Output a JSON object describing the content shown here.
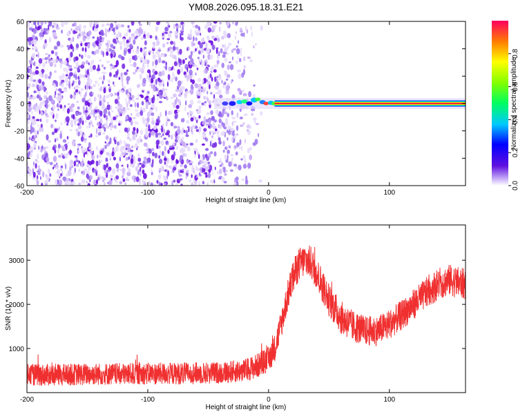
{
  "title": "YM08.2026.095.18.31.E21",
  "chart_data": [
    {
      "type": "heatmap",
      "xlabel": "Height of straight line (km)",
      "ylabel": "Frequency (Hz)",
      "xlim": [
        -200,
        163
      ],
      "ylim": [
        -60,
        60
      ],
      "xticks": [
        -200,
        -100,
        0,
        100
      ],
      "xtick_labels": [
        "-200",
        "-100",
        "0",
        "100"
      ],
      "yticks": [
        -60,
        -40,
        -20,
        0,
        20,
        40,
        60
      ],
      "ytick_labels": [
        "-60",
        "-40",
        "-20",
        "0",
        "20",
        "40",
        "60"
      ],
      "colorbar": {
        "label": "Normalized spectral amplitude",
        "range": [
          0,
          1
        ],
        "ticks": [
          0,
          0.2,
          0.4,
          0.6,
          0.8
        ],
        "tick_labels": [
          "0.0",
          "0.2",
          "0.4",
          "0.6",
          "0.8"
        ]
      },
      "features": {
        "noise_region_x": [
          -200,
          -10
        ],
        "peak_frequency_hz": 0,
        "signal_x_range": [
          -45,
          163
        ],
        "signal_peak_x_range": [
          5,
          163
        ]
      }
    },
    {
      "type": "line",
      "xlabel": "Height of straight line (km)",
      "ylabel": "SNR (10 * v/v)",
      "xlim": [
        -200,
        163
      ],
      "ylim": [
        0,
        3800
      ],
      "xticks": [
        -200,
        -100,
        0,
        100
      ],
      "xtick_labels": [
        "-200",
        "-100",
        "0",
        "100"
      ],
      "yticks": [
        1000,
        2000,
        3000
      ],
      "ytick_labels": [
        "1000",
        "2000",
        "3000"
      ],
      "series": [
        {
          "name": "SNR",
          "color": "#f03030",
          "x": [
            -200,
            -180,
            -160,
            -140,
            -120,
            -100,
            -80,
            -60,
            -40,
            -20,
            -10,
            0,
            5,
            10,
            15,
            20,
            25,
            30,
            35,
            40,
            50,
            60,
            70,
            80,
            90,
            100,
            110,
            120,
            130,
            140,
            150,
            163
          ],
          "y": [
            400,
            400,
            410,
            420,
            420,
            430,
            430,
            440,
            450,
            500,
            600,
            750,
            1000,
            1500,
            2100,
            2600,
            2900,
            3000,
            2950,
            2700,
            2100,
            1700,
            1500,
            1400,
            1400,
            1550,
            1750,
            2000,
            2250,
            2450,
            2550,
            2450
          ],
          "noise_amplitude": [
            250,
            250,
            250,
            250,
            250,
            250,
            250,
            250,
            250,
            260,
            280,
            300,
            320,
            340,
            360,
            380,
            380,
            380,
            380,
            380,
            380,
            380,
            360,
            340,
            340,
            340,
            340,
            350,
            350,
            360,
            360,
            360
          ]
        }
      ]
    }
  ]
}
